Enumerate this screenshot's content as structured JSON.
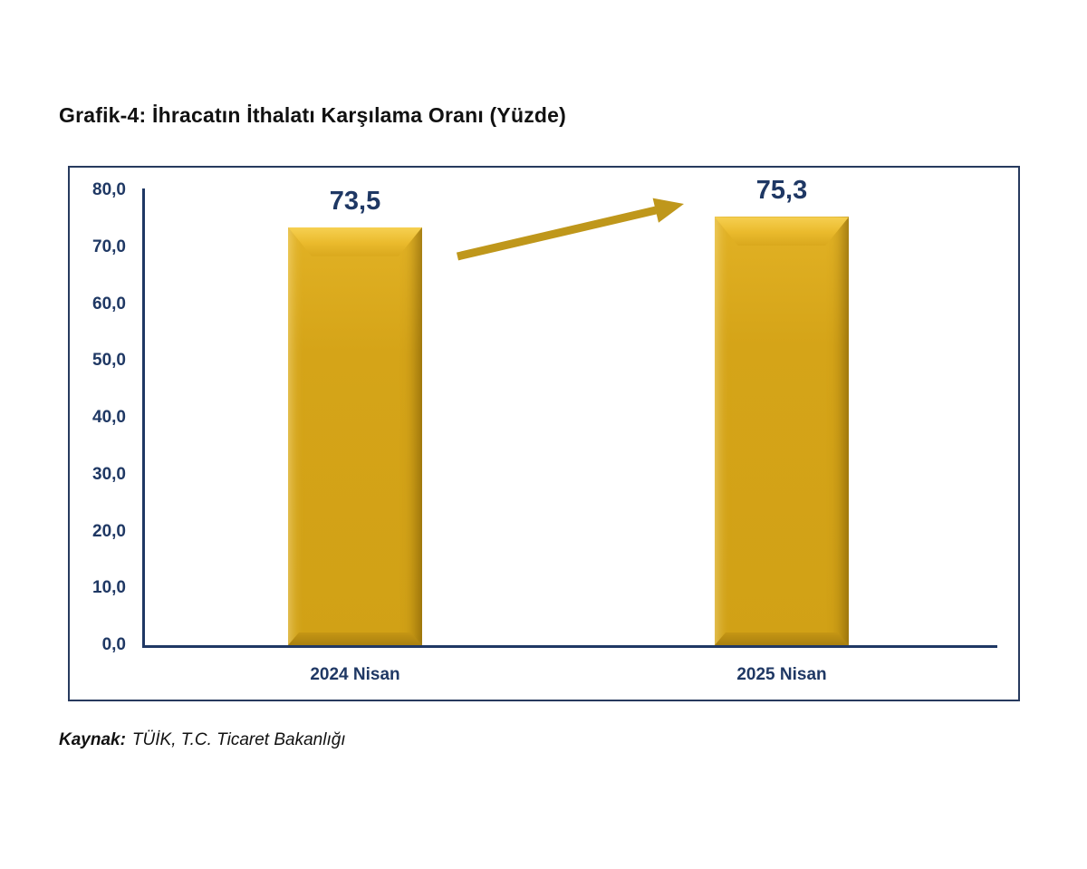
{
  "header": {
    "title": "Grafik-4: İhracatın İthalatı Karşılama Oranı (Yüzde)"
  },
  "footer": {
    "source_label": "Kaynak:",
    "source_text": "TÜİK, T.C. Ticaret Bakanlığı"
  },
  "chart_data": {
    "type": "bar",
    "title": "Grafik-4: İhracatın İthalatı Karşılama Oranı (Yüzde)",
    "categories": [
      "2024 Nisan",
      "2025 Nisan"
    ],
    "values": [
      73.5,
      75.3
    ],
    "value_labels": [
      "73,5",
      "75,3"
    ],
    "xlabel": "",
    "ylabel": "",
    "ylim": [
      0,
      80
    ],
    "ytick_step": 10,
    "ytick_labels": [
      "80,0",
      "70,0",
      "60,0",
      "50,0",
      "40,0",
      "30,0",
      "20,0",
      "10,0",
      "0,0"
    ],
    "grid": false,
    "legend": "none",
    "bar_color": "#D4A318",
    "label_color": "#1F3864",
    "annotations": [
      {
        "type": "arrow",
        "from_category": "2024 Nisan",
        "to_category": "2025 Nisan",
        "direction": "up-right",
        "color": "#BF971B"
      }
    ]
  }
}
